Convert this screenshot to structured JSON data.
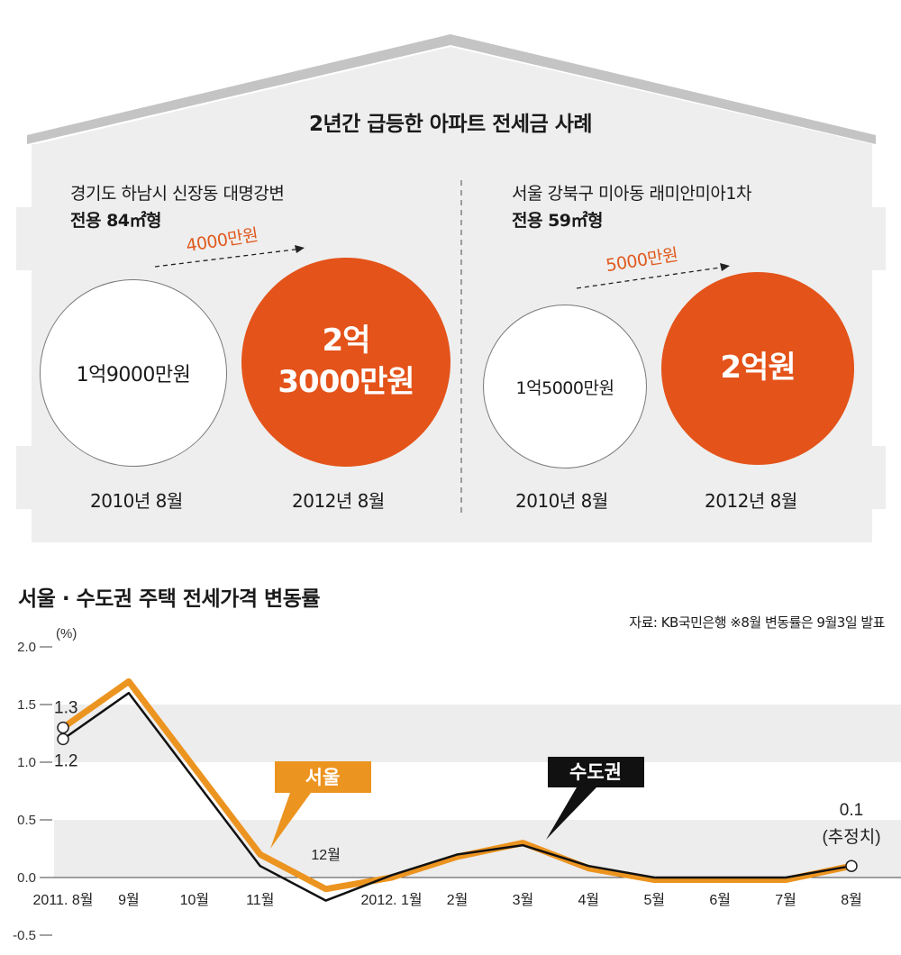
{
  "infographic": {
    "title": "2년간 급등한 아파트 전세금 사례",
    "cases": [
      {
        "location": "경기도 하남시 신장동 대명강변",
        "size": "전용 84㎡형",
        "increase": "4000만원",
        "before": {
          "price": "1억9000만원",
          "date": "2010년 8월"
        },
        "after": {
          "price_line1": "2억",
          "price_line2": "3000만원",
          "date": "2012년 8월"
        }
      },
      {
        "location": "서울 강북구 미아동 래미안미아1차",
        "size": "전용 59㎡형",
        "increase": "5000만원",
        "before": {
          "price": "1억5000만원",
          "date": "2010년 8월"
        },
        "after": {
          "price_line1": "2억원",
          "price_line2": "",
          "date": "2012년 8월"
        }
      }
    ],
    "colors": {
      "accent": "#e4531a",
      "house_gray": "#eeeeee",
      "roof_gray": "#c4c4c4"
    }
  },
  "chart_title": "서울 · 수도권 주택 전세가격 변동률",
  "source_note": "자료: KB국민은행   ※8월 변동률은 9월3일 발표",
  "chart_data": {
    "type": "line",
    "unit": "(%)",
    "categories": [
      "2011. 8월",
      "9월",
      "10월",
      "11월",
      "12월",
      "2012. 1월",
      "2월",
      "3월",
      "4월",
      "5월",
      "6월",
      "7월",
      "8월"
    ],
    "series": [
      {
        "name": "서울",
        "color": "#ec9420",
        "values": [
          1.3,
          1.7,
          0.95,
          0.2,
          -0.1,
          0.0,
          0.18,
          0.3,
          0.08,
          -0.02,
          -0.02,
          -0.02,
          0.1
        ]
      },
      {
        "name": "수도권",
        "color": "#111111",
        "values": [
          1.2,
          1.6,
          0.85,
          0.1,
          -0.2,
          0.02,
          0.2,
          0.28,
          0.1,
          0.0,
          0.0,
          0.0,
          0.1
        ]
      }
    ],
    "yticks": [
      "2.0",
      "1.5",
      "1.0",
      "0.5",
      "0.0",
      "-0.5"
    ],
    "ylim": [
      -0.5,
      2.0
    ],
    "annotations": {
      "seoul_start": "1.3",
      "capital_start": "1.2",
      "end_value": "0.1",
      "end_note": "(추정치)"
    },
    "legend": {
      "seoul": "서울",
      "capital": "수도권"
    }
  }
}
